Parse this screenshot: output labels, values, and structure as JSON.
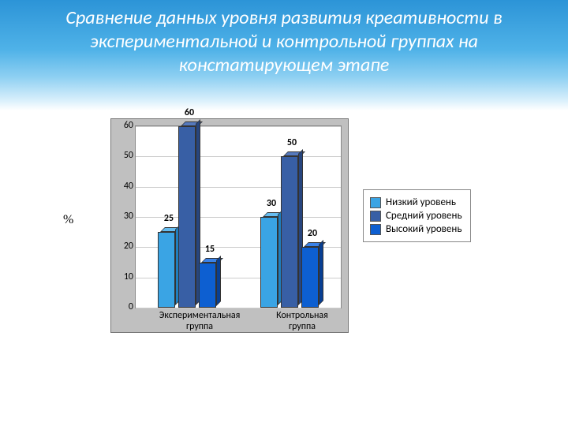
{
  "title": "Сравнение данных  уровня развития креативности в экспериментальной и контрольной группах на констатирующем этапе",
  "percent_symbol": "%",
  "chart": {
    "type": "bar",
    "y_axis": {
      "min": 0,
      "max": 60,
      "step": 10,
      "ticks": [
        0,
        10,
        20,
        30,
        40,
        50,
        60
      ]
    },
    "categories": [
      {
        "key": "exp",
        "label_line1": "Экспериментальная",
        "label_line2": "группа"
      },
      {
        "key": "ctl",
        "label_line1": "Контрольная",
        "label_line2": "группа"
      }
    ],
    "series": [
      {
        "key": "low",
        "label": "Низкий уровень",
        "face": "#3aa4e4",
        "top": "#66bdf0",
        "side": "#1f7fbf"
      },
      {
        "key": "mid",
        "label": "Средний уровень",
        "face": "#385fa5",
        "top": "#5579bd",
        "side": "#27457e"
      },
      {
        "key": "high",
        "label": "Высокий уровень",
        "face": "#0d5fd1",
        "top": "#3a82e8",
        "side": "#083f93"
      }
    ],
    "values": {
      "exp": {
        "low": 25,
        "mid": 60,
        "high": 15
      },
      "ctl": {
        "low": 30,
        "mid": 50,
        "high": 20
      }
    },
    "plot_bg": "#ffffff",
    "panel_bg": "#c0c0c0",
    "grid_color": "#cccccc"
  },
  "legend_title": null
}
